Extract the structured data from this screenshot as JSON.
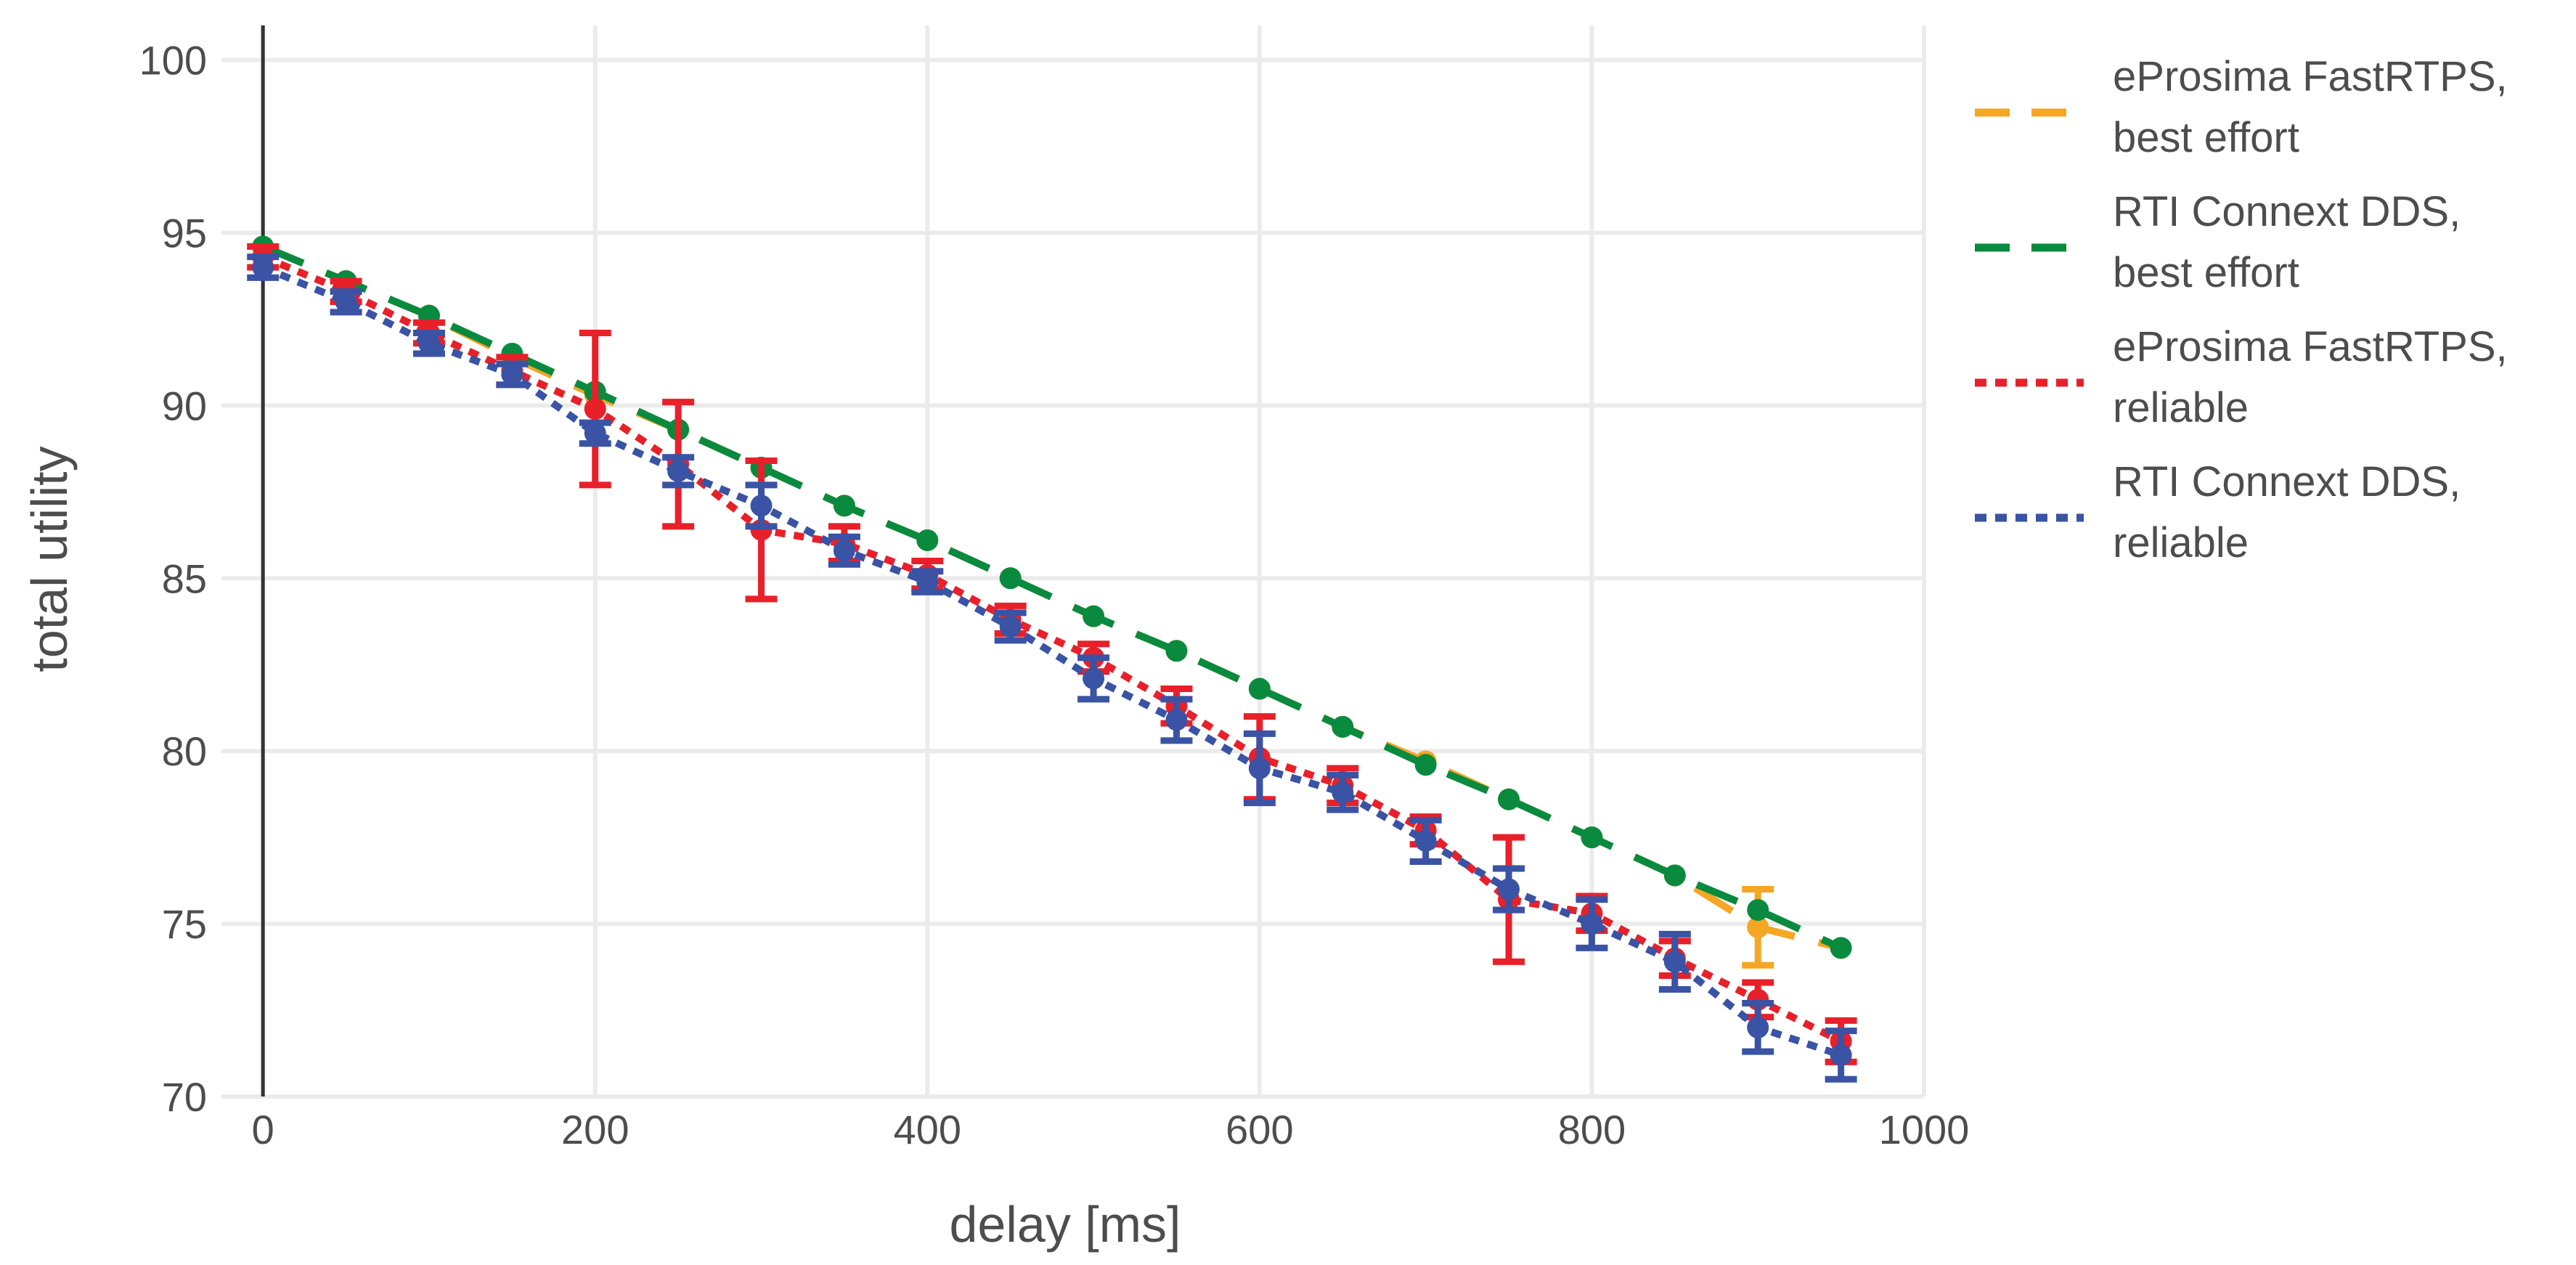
{
  "chart_data": {
    "type": "line",
    "title": "",
    "xlabel": "delay [ms]",
    "ylabel": "total utility",
    "xlim": [
      -25,
      1000
    ],
    "ylim": [
      70,
      101
    ],
    "x_ticks": [
      0,
      200,
      400,
      600,
      800,
      1000
    ],
    "y_ticks": [
      70,
      75,
      80,
      85,
      90,
      95,
      100
    ],
    "x_tick_labels": [
      "0",
      "200",
      "400",
      "600",
      "800",
      "1000"
    ],
    "y_tick_labels": [
      "70",
      "75",
      "80",
      "85",
      "90",
      "95",
      "100"
    ],
    "grid": true,
    "legend_position": "right",
    "x": [
      0,
      50,
      100,
      150,
      200,
      250,
      300,
      350,
      400,
      450,
      500,
      550,
      600,
      650,
      700,
      750,
      800,
      850,
      900,
      950
    ],
    "series": [
      {
        "name": "eProsima FastRTPS, best effort",
        "label_lines": [
          "eProsima FastRTPS,",
          "best effort"
        ],
        "color": "#f5a623",
        "line_style": "dashed",
        "values": [
          94.6,
          93.6,
          92.6,
          91.4,
          90.3,
          89.3,
          88.2,
          87.1,
          86.1,
          85.0,
          83.9,
          82.9,
          81.8,
          80.7,
          79.7,
          78.6,
          77.5,
          76.4,
          74.9,
          74.3
        ],
        "error": [
          0.2,
          0.2,
          0.2,
          0.2,
          0.2,
          0.2,
          0.2,
          0.2,
          0.2,
          0.2,
          0.2,
          0.2,
          0.2,
          0.2,
          0.2,
          0.2,
          0.2,
          0.2,
          1.1,
          0.2
        ]
      },
      {
        "name": "RTI Connext DDS, best effort",
        "label_lines": [
          "RTI Connext DDS,",
          "best effort"
        ],
        "color": "#0a8a3e",
        "line_style": "dashed",
        "values": [
          94.6,
          93.6,
          92.6,
          91.5,
          90.4,
          89.3,
          88.2,
          87.1,
          86.1,
          85.0,
          83.9,
          82.9,
          81.8,
          80.7,
          79.6,
          78.6,
          77.5,
          76.4,
          75.4,
          74.3
        ],
        "error": [
          0.2,
          0.2,
          0.2,
          0.2,
          0.2,
          0.2,
          0.2,
          0.2,
          0.2,
          0.2,
          0.2,
          0.2,
          0.2,
          0.2,
          0.2,
          0.2,
          0.2,
          0.2,
          0.2,
          0.2
        ]
      },
      {
        "name": "eProsima FastRTPS, reliable",
        "label_lines": [
          "eProsima FastRTPS,",
          "reliable"
        ],
        "color": "#e8202a",
        "line_style": "dotted",
        "values": [
          94.3,
          93.3,
          92.1,
          91.0,
          89.9,
          88.3,
          86.4,
          86.0,
          85.1,
          83.8,
          82.7,
          81.3,
          79.8,
          79.0,
          77.7,
          75.7,
          75.3,
          74.0,
          72.8,
          71.6
        ],
        "error": [
          0.3,
          0.3,
          0.3,
          0.4,
          2.2,
          1.8,
          2.0,
          0.5,
          0.4,
          0.4,
          0.4,
          0.5,
          1.2,
          0.5,
          0.4,
          1.8,
          0.5,
          0.5,
          0.5,
          0.6
        ]
      },
      {
        "name": "RTI Connext DDS, reliable",
        "label_lines": [
          "RTI Connext DDS,",
          "reliable"
        ],
        "color": "#3a53a4",
        "line_style": "dotted",
        "values": [
          94.0,
          93.0,
          91.8,
          90.9,
          89.2,
          88.1,
          87.1,
          85.8,
          84.9,
          83.6,
          82.1,
          80.9,
          79.5,
          78.8,
          77.4,
          76.0,
          75.0,
          73.9,
          72.0,
          71.2
        ],
        "error": [
          0.3,
          0.3,
          0.3,
          0.3,
          0.3,
          0.4,
          0.6,
          0.4,
          0.3,
          0.4,
          0.6,
          0.6,
          1.0,
          0.5,
          0.6,
          0.6,
          0.7,
          0.8,
          0.7,
          0.7
        ]
      }
    ]
  }
}
